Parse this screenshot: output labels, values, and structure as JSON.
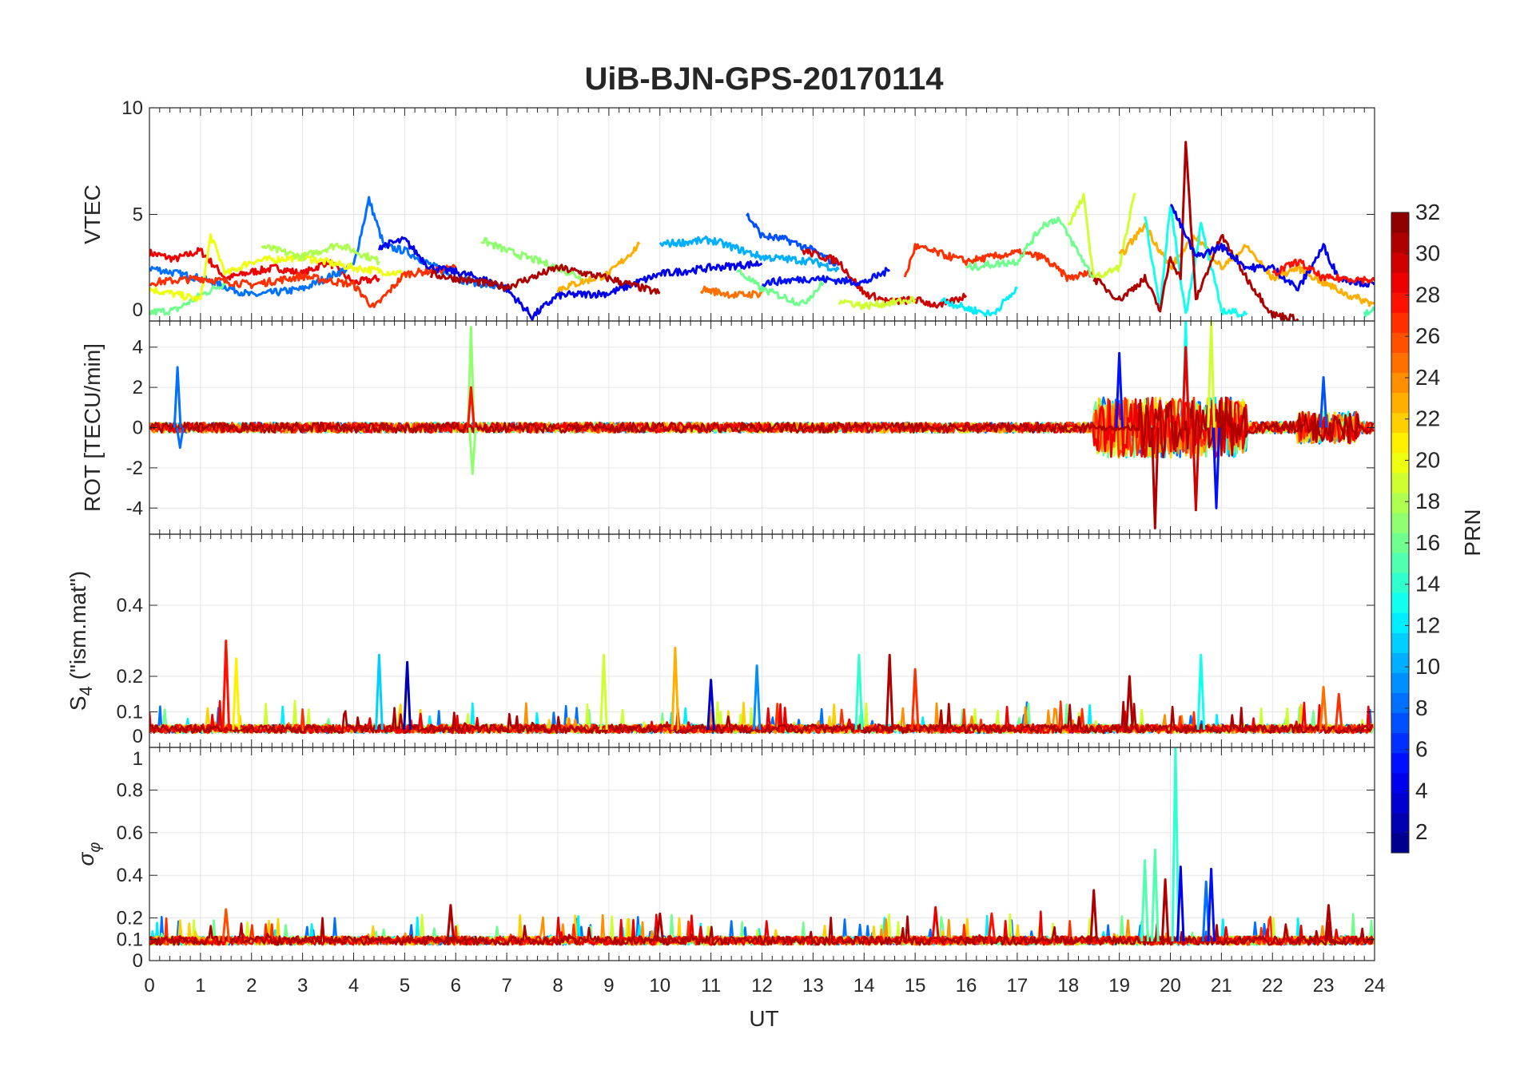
{
  "chart_data": {
    "type": "line",
    "title": "UiB-BJN-GPS-20170114",
    "xlabel": "UT",
    "xlim": [
      0,
      24
    ],
    "xticks": [
      0,
      1,
      2,
      3,
      4,
      5,
      6,
      7,
      8,
      9,
      10,
      11,
      12,
      13,
      14,
      15,
      16,
      17,
      18,
      19,
      20,
      21,
      22,
      23,
      24
    ],
    "colorbar": {
      "label": "PRN",
      "colormap": "jet",
      "range": [
        1,
        32
      ],
      "ticks": [
        2,
        4,
        6,
        8,
        10,
        12,
        14,
        16,
        18,
        20,
        22,
        24,
        26,
        28,
        30,
        32
      ]
    },
    "panels": [
      {
        "id": "vtec",
        "ylabel": "VTEC",
        "ylim": [
          0,
          10
        ],
        "yticks": [
          0,
          5,
          10
        ],
        "baseline": null,
        "series": [
          {
            "prn": 29,
            "t": [
              0,
              0.5,
              1,
              1.5,
              2,
              2.5,
              3,
              3.5,
              4,
              4.5
            ],
            "v": [
              3.2,
              2.9,
              3.3,
              2.0,
              2.3,
              2.5,
              2.2,
              2.8,
              1.8,
              2.0
            ]
          },
          {
            "prn": 8,
            "t": [
              0,
              1,
              2,
              3,
              4,
              4.3,
              4.6,
              5,
              6,
              7
            ],
            "v": [
              2.5,
              2.0,
              1.2,
              1.5,
              2.6,
              5.7,
              3.5,
              3.3,
              2.0,
              1.5
            ]
          },
          {
            "prn": 16,
            "t": [
              0,
              0.5,
              1,
              1.5
            ],
            "v": [
              0.4,
              0.5,
              1.2,
              1.8
            ]
          },
          {
            "prn": 20,
            "t": [
              0,
              1,
              1.2,
              1.5,
              2,
              3,
              4,
              5
            ],
            "v": [
              1.5,
              1.0,
              4.0,
              2.2,
              2.8,
              3.0,
              2.5,
              2.2
            ]
          },
          {
            "prn": 18,
            "t": [
              2.2,
              3,
              3.7,
              4.5
            ],
            "v": [
              3.5,
              3.0,
              3.6,
              2.8
            ]
          },
          {
            "prn": 27,
            "t": [
              0,
              1,
              2,
              3,
              4,
              4.4,
              5,
              6
            ],
            "v": [
              1.8,
              2.0,
              1.7,
              2.1,
              1.7,
              0.6,
              2.2,
              2.5
            ]
          },
          {
            "prn": 4,
            "t": [
              4.5,
              5.0,
              5.5,
              6,
              6.5,
              7,
              7.5,
              8,
              9,
              10,
              11,
              12
            ],
            "v": [
              3.5,
              3.8,
              2.5,
              2.3,
              2.0,
              1.5,
              0.2,
              1.2,
              1.3,
              2.2,
              2.5,
              2.7
            ]
          },
          {
            "prn": 17,
            "t": [
              6.5,
              7,
              8,
              8.5
            ],
            "v": [
              3.8,
              3.3,
              2.5,
              2.0
            ]
          },
          {
            "prn": 23,
            "t": [
              8,
              9,
              9.6
            ],
            "v": [
              1.5,
              2.2,
              3.6
            ]
          },
          {
            "prn": 31,
            "t": [
              5.5,
              6,
              7,
              8,
              9,
              10
            ],
            "v": [
              2.2,
              2.0,
              1.6,
              2.5,
              2.0,
              1.3
            ]
          },
          {
            "prn": 10,
            "t": [
              10,
              11,
              12,
              13,
              13.5
            ],
            "v": [
              3.6,
              3.8,
              3.0,
              2.8,
              2.4
            ]
          },
          {
            "prn": 7,
            "t": [
              11.7,
              12,
              12.5,
              13,
              13.5
            ],
            "v": [
              5.0,
              4.0,
              3.8,
              3.3,
              2.6
            ]
          },
          {
            "prn": 25,
            "t": [
              10.8,
              11.5,
              12
            ],
            "v": [
              1.5,
              1.2,
              1.3
            ]
          },
          {
            "prn": 16,
            "t": [
              11.5,
              12,
              12.8,
              13.2
            ],
            "v": [
              2.4,
              1.5,
              0.8,
              1.8
            ]
          },
          {
            "prn": 30,
            "t": [
              12.8,
              13.5,
              14,
              14.5,
              15,
              15.5,
              16
            ],
            "v": [
              3.3,
              2.8,
              1.3,
              0.9,
              1.0,
              0.7,
              1.2
            ]
          },
          {
            "prn": 5,
            "t": [
              12,
              13,
              14,
              14.5
            ],
            "v": [
              1.8,
              2.0,
              1.8,
              2.4
            ]
          },
          {
            "prn": 19,
            "t": [
              13.5,
              14,
              15
            ],
            "v": [
              1.0,
              0.7,
              1.0
            ]
          },
          {
            "prn": 27,
            "t": [
              14.8,
              15,
              16,
              17,
              17.5,
              18,
              18.5
            ],
            "v": [
              2.0,
              3.5,
              2.8,
              3.2,
              3.0,
              2.0,
              2.3
            ]
          },
          {
            "prn": 12,
            "t": [
              15.5,
              16,
              16.5,
              17
            ],
            "v": [
              1.0,
              0.6,
              0.3,
              1.5
            ]
          },
          {
            "prn": 16,
            "t": [
              16,
              17,
              17.5,
              17.8,
              18.5
            ],
            "v": [
              2.5,
              2.8,
              4.5,
              4.8,
              2.0
            ]
          },
          {
            "prn": 19,
            "t": [
              18,
              18.3,
              18.5,
              19,
              19.3
            ],
            "v": [
              4.5,
              5.8,
              2.0,
              2.5,
              6.0
            ]
          },
          {
            "prn": 23,
            "t": [
              19,
              19.5,
              20,
              20.5,
              21,
              21.5,
              22,
              22.5,
              23,
              23.5,
              24
            ],
            "v": [
              3.0,
              4.5,
              2.5,
              4.0,
              2.5,
              3.5,
              2.0,
              2.5,
              1.8,
              1.2,
              0.8
            ]
          },
          {
            "prn": 13,
            "t": [
              19.5,
              19.8,
              20,
              20.3,
              20.6,
              21,
              21.5
            ],
            "v": [
              5.0,
              0.5,
              5.5,
              0.3,
              4.5,
              0.5,
              0.3
            ]
          },
          {
            "prn": 31,
            "t": [
              18.5,
              19,
              19.5,
              19.8,
              20,
              20.2,
              20.3,
              20.5,
              21,
              21.5,
              22,
              22.5
            ],
            "v": [
              2.0,
              1.0,
              2.0,
              0.5,
              3.0,
              2.0,
              8.3,
              1.0,
              4.0,
              2.0,
              0.3,
              0.1
            ]
          },
          {
            "prn": 4,
            "t": [
              20,
              20.5,
              21,
              21.5,
              22,
              22.5,
              23,
              23.3,
              24
            ],
            "v": [
              5.5,
              3.0,
              3.5,
              2.5,
              2.5,
              1.5,
              3.5,
              2.0,
              1.7
            ]
          },
          {
            "prn": 28,
            "t": [
              22,
              22.5,
              23,
              23.5,
              24
            ],
            "v": [
              2.2,
              2.8,
              2.0,
              2.0,
              1.9
            ]
          },
          {
            "prn": 15,
            "t": [
              23.8,
              24
            ],
            "v": [
              0.3,
              0.5
            ]
          }
        ]
      },
      {
        "id": "rot",
        "ylabel": "ROT [TECU/min]",
        "ylim": [
          -5.3,
          5.3
        ],
        "yticks": [
          -4,
          -2,
          0,
          2,
          4
        ],
        "baseline": 0,
        "activity": [
          {
            "t": [
              0,
              18.5
            ],
            "amp": 0.25
          },
          {
            "t": [
              18.5,
              21.5
            ],
            "amp": 1.5
          },
          {
            "t": [
              21.5,
              22.5
            ],
            "amp": 0.3
          },
          {
            "t": [
              22.5,
              23.7
            ],
            "amp": 0.8
          },
          {
            "t": [
              23.7,
              24
            ],
            "amp": 0.3
          }
        ],
        "spikes": [
          {
            "t": 0.55,
            "v": 3.0,
            "prn": 8
          },
          {
            "t": 0.6,
            "v": -1.0,
            "prn": 8
          },
          {
            "t": 6.3,
            "v": 5.0,
            "prn": 17
          },
          {
            "t": 6.33,
            "v": -2.3,
            "prn": 17
          },
          {
            "t": 6.3,
            "v": 2.0,
            "prn": 28
          },
          {
            "t": 19.0,
            "v": 3.7,
            "prn": 5
          },
          {
            "t": 19.7,
            "v": -5.0,
            "prn": 31
          },
          {
            "t": 20.3,
            "v": 5.3,
            "prn": 13
          },
          {
            "t": 20.3,
            "v": 4.0,
            "prn": 29
          },
          {
            "t": 20.8,
            "v": 5.3,
            "prn": 19
          },
          {
            "t": 20.9,
            "v": -4.0,
            "prn": 5
          },
          {
            "t": 20.5,
            "v": -4.1,
            "prn": 30
          },
          {
            "t": 23.0,
            "v": 2.5,
            "prn": 7
          }
        ]
      },
      {
        "id": "s4",
        "ylabel": "S4 (\"ism.mat\")",
        "ylim": [
          0,
          0.6
        ],
        "yticks": [
          0,
          0.1,
          0.2,
          0.4
        ],
        "baseline": 0.05,
        "spikes": [
          {
            "t": 1.5,
            "v": 0.3,
            "prn": 28
          },
          {
            "t": 1.7,
            "v": 0.25,
            "prn": 21
          },
          {
            "t": 4.5,
            "v": 0.26,
            "prn": 11
          },
          {
            "t": 5.05,
            "v": 0.24,
            "prn": 2
          },
          {
            "t": 8.9,
            "v": 0.26,
            "prn": 19
          },
          {
            "t": 10.3,
            "v": 0.28,
            "prn": 23
          },
          {
            "t": 11.0,
            "v": 0.19,
            "prn": 3
          },
          {
            "t": 11.9,
            "v": 0.23,
            "prn": 9
          },
          {
            "t": 13.9,
            "v": 0.26,
            "prn": 14
          },
          {
            "t": 14.5,
            "v": 0.26,
            "prn": 31
          },
          {
            "t": 15.0,
            "v": 0.22,
            "prn": 27
          },
          {
            "t": 19.2,
            "v": 0.2,
            "prn": 31
          },
          {
            "t": 20.6,
            "v": 0.26,
            "prn": 13
          },
          {
            "t": 23.0,
            "v": 0.17,
            "prn": 25
          },
          {
            "t": 23.3,
            "v": 0.15,
            "prn": 27
          }
        ]
      },
      {
        "id": "sigma",
        "ylabel": "σφ",
        "ylim": [
          0,
          1
        ],
        "yticks": [
          0,
          0.1,
          0.2,
          0.4,
          0.6,
          0.8,
          1
        ],
        "baseline": 0.09,
        "spikes": [
          {
            "t": 1.5,
            "v": 0.24,
            "prn": 26
          },
          {
            "t": 5.9,
            "v": 0.26,
            "prn": 31
          },
          {
            "t": 10.0,
            "v": 0.22,
            "prn": 31
          },
          {
            "t": 18.5,
            "v": 0.33,
            "prn": 31
          },
          {
            "t": 19.5,
            "v": 0.47,
            "prn": 15
          },
          {
            "t": 19.7,
            "v": 0.52,
            "prn": 15
          },
          {
            "t": 20.1,
            "v": 1.0,
            "prn": 14
          },
          {
            "t": 19.9,
            "v": 0.38,
            "prn": 31
          },
          {
            "t": 20.2,
            "v": 0.44,
            "prn": 4
          },
          {
            "t": 20.7,
            "v": 0.37,
            "prn": 8
          },
          {
            "t": 20.8,
            "v": 0.43,
            "prn": 5
          },
          {
            "t": 23.1,
            "v": 0.26,
            "prn": 31
          },
          {
            "t": 15.4,
            "v": 0.25,
            "prn": 29
          },
          {
            "t": 16.5,
            "v": 0.22,
            "prn": 28
          }
        ]
      }
    ]
  }
}
